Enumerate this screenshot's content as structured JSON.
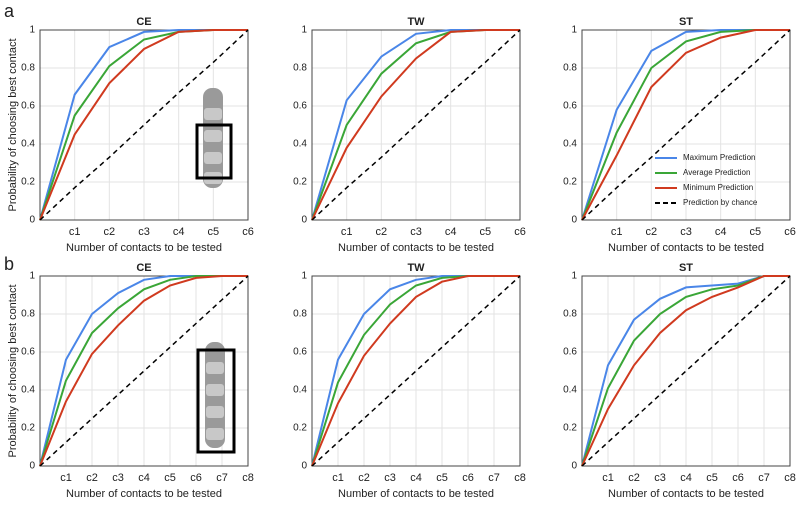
{
  "panel_labels": [
    "a",
    "b"
  ],
  "chart_data": [
    {
      "type": "line",
      "title": "CE",
      "xlabel": "Number of contacts to be tested",
      "ylabel": "Probability of choosing best contact",
      "x": [
        0,
        1,
        2,
        3,
        4,
        5,
        6
      ],
      "xlim": [
        0,
        6
      ],
      "xticks": [
        {
          "value": 1,
          "label": "c1"
        },
        {
          "value": 2,
          "label": "c2"
        },
        {
          "value": 3,
          "label": "c3"
        },
        {
          "value": 4,
          "label": "c4"
        },
        {
          "value": 5,
          "label": "c5"
        },
        {
          "value": 6,
          "label": "c6"
        }
      ],
      "ylim": [
        0,
        1
      ],
      "yticks": [
        0,
        0.2,
        0.4,
        0.6,
        0.8,
        1
      ],
      "grid": true,
      "series": [
        {
          "color": "#4a86e8",
          "linestyle": "solid",
          "values": [
            0,
            0.66,
            0.91,
            0.99,
            1,
            1,
            1
          ]
        },
        {
          "color": "#3aa637",
          "linestyle": "solid",
          "values": [
            0,
            0.55,
            0.81,
            0.95,
            0.99,
            1,
            1
          ]
        },
        {
          "color": "#d03a1f",
          "linestyle": "solid",
          "values": [
            0,
            0.45,
            0.72,
            0.9,
            0.99,
            1,
            1
          ]
        },
        {
          "color": "#000000",
          "linestyle": "dashed",
          "values": [
            0,
            0.17,
            0.33,
            0.5,
            0.67,
            0.83,
            1
          ]
        }
      ]
    },
    {
      "type": "line",
      "title": "TW",
      "xlabel": "Number of contacts to be tested",
      "x": [
        0,
        1,
        2,
        3,
        4,
        5,
        6
      ],
      "xlim": [
        0,
        6
      ],
      "xticks": [
        {
          "value": 1,
          "label": "c1"
        },
        {
          "value": 2,
          "label": "c2"
        },
        {
          "value": 3,
          "label": "c3"
        },
        {
          "value": 4,
          "label": "c4"
        },
        {
          "value": 5,
          "label": "c5"
        },
        {
          "value": 6,
          "label": "c6"
        }
      ],
      "ylim": [
        0,
        1
      ],
      "yticks": [
        0,
        0.2,
        0.4,
        0.6,
        0.8,
        1
      ],
      "grid": true,
      "series": [
        {
          "color": "#4a86e8",
          "linestyle": "solid",
          "values": [
            0,
            0.63,
            0.86,
            0.98,
            1,
            1,
            1
          ]
        },
        {
          "color": "#3aa637",
          "linestyle": "solid",
          "values": [
            0,
            0.5,
            0.77,
            0.93,
            0.99,
            1,
            1
          ]
        },
        {
          "color": "#d03a1f",
          "linestyle": "solid",
          "values": [
            0,
            0.38,
            0.65,
            0.85,
            0.99,
            1,
            1
          ]
        },
        {
          "color": "#000000",
          "linestyle": "dashed",
          "values": [
            0,
            0.17,
            0.33,
            0.5,
            0.67,
            0.83,
            1
          ]
        }
      ]
    },
    {
      "type": "line",
      "title": "ST",
      "xlabel": "Number of contacts to be tested",
      "x": [
        0,
        1,
        2,
        3,
        4,
        5,
        6
      ],
      "xlim": [
        0,
        6
      ],
      "xticks": [
        {
          "value": 1,
          "label": "c1"
        },
        {
          "value": 2,
          "label": "c2"
        },
        {
          "value": 3,
          "label": "c3"
        },
        {
          "value": 4,
          "label": "c4"
        },
        {
          "value": 5,
          "label": "c5"
        },
        {
          "value": 6,
          "label": "c6"
        }
      ],
      "ylim": [
        0,
        1
      ],
      "yticks": [
        0,
        0.2,
        0.4,
        0.6,
        0.8,
        1
      ],
      "grid": true,
      "legend": "lower right",
      "series": [
        {
          "name": "Maximum Prediction",
          "color": "#4a86e8",
          "linestyle": "solid",
          "values": [
            0,
            0.58,
            0.89,
            0.99,
            1,
            1,
            1
          ]
        },
        {
          "name": "Average Prediction",
          "color": "#3aa637",
          "linestyle": "solid",
          "values": [
            0,
            0.46,
            0.8,
            0.94,
            0.99,
            1,
            1
          ]
        },
        {
          "name": "Minimum Prediction",
          "color": "#d03a1f",
          "linestyle": "solid",
          "values": [
            0,
            0.34,
            0.7,
            0.88,
            0.96,
            1,
            1
          ]
        },
        {
          "name": "Prediction by chance",
          "color": "#000000",
          "linestyle": "dashed",
          "values": [
            0,
            0.17,
            0.33,
            0.5,
            0.67,
            0.83,
            1
          ]
        }
      ]
    },
    {
      "type": "line",
      "title": "CE",
      "xlabel": "Number of contacts to be tested",
      "ylabel": "Probability of choosing best contact",
      "x": [
        0,
        1,
        2,
        3,
        4,
        5,
        6,
        7,
        8
      ],
      "xlim": [
        0,
        8
      ],
      "xticks": [
        {
          "value": 1,
          "label": "c1"
        },
        {
          "value": 2,
          "label": "c2"
        },
        {
          "value": 3,
          "label": "c3"
        },
        {
          "value": 4,
          "label": "c4"
        },
        {
          "value": 5,
          "label": "c5"
        },
        {
          "value": 6,
          "label": "c6"
        },
        {
          "value": 7,
          "label": "c7"
        },
        {
          "value": 8,
          "label": "c8"
        }
      ],
      "ylim": [
        0,
        1
      ],
      "yticks": [
        0,
        0.2,
        0.4,
        0.6,
        0.8,
        1
      ],
      "grid": true,
      "series": [
        {
          "color": "#4a86e8",
          "linestyle": "solid",
          "values": [
            0,
            0.56,
            0.8,
            0.91,
            0.98,
            1,
            1,
            1,
            1
          ]
        },
        {
          "color": "#3aa637",
          "linestyle": "solid",
          "values": [
            0,
            0.45,
            0.7,
            0.83,
            0.93,
            0.98,
            1,
            1,
            1
          ]
        },
        {
          "color": "#d03a1f",
          "linestyle": "solid",
          "values": [
            0,
            0.34,
            0.59,
            0.74,
            0.87,
            0.95,
            0.99,
            1,
            1
          ]
        },
        {
          "color": "#000000",
          "linestyle": "dashed",
          "values": [
            0,
            0.125,
            0.25,
            0.375,
            0.5,
            0.625,
            0.75,
            0.875,
            1
          ]
        }
      ]
    },
    {
      "type": "line",
      "title": "TW",
      "xlabel": "Number of contacts to be tested",
      "x": [
        0,
        1,
        2,
        3,
        4,
        5,
        6,
        7,
        8
      ],
      "xlim": [
        0,
        8
      ],
      "xticks": [
        {
          "value": 1,
          "label": "c1"
        },
        {
          "value": 2,
          "label": "c2"
        },
        {
          "value": 3,
          "label": "c3"
        },
        {
          "value": 4,
          "label": "c4"
        },
        {
          "value": 5,
          "label": "c5"
        },
        {
          "value": 6,
          "label": "c6"
        },
        {
          "value": 7,
          "label": "c7"
        },
        {
          "value": 8,
          "label": "c8"
        }
      ],
      "ylim": [
        0,
        1
      ],
      "yticks": [
        0,
        0.2,
        0.4,
        0.6,
        0.8,
        1
      ],
      "grid": true,
      "series": [
        {
          "color": "#4a86e8",
          "linestyle": "solid",
          "values": [
            0,
            0.56,
            0.8,
            0.93,
            0.98,
            1,
            1,
            1,
            1
          ]
        },
        {
          "color": "#3aa637",
          "linestyle": "solid",
          "values": [
            0,
            0.44,
            0.69,
            0.85,
            0.95,
            0.99,
            1,
            1,
            1
          ]
        },
        {
          "color": "#d03a1f",
          "linestyle": "solid",
          "values": [
            0,
            0.33,
            0.58,
            0.75,
            0.89,
            0.97,
            1,
            1,
            1
          ]
        },
        {
          "color": "#000000",
          "linestyle": "dashed",
          "values": [
            0,
            0.125,
            0.25,
            0.375,
            0.5,
            0.625,
            0.75,
            0.875,
            1
          ]
        }
      ]
    },
    {
      "type": "line",
      "title": "ST",
      "xlabel": "Number of contacts to be tested",
      "x": [
        0,
        1,
        2,
        3,
        4,
        5,
        6,
        7,
        8
      ],
      "xlim": [
        0,
        8
      ],
      "xticks": [
        {
          "value": 1,
          "label": "c1"
        },
        {
          "value": 2,
          "label": "c2"
        },
        {
          "value": 3,
          "label": "c3"
        },
        {
          "value": 4,
          "label": "c4"
        },
        {
          "value": 5,
          "label": "c5"
        },
        {
          "value": 6,
          "label": "c6"
        },
        {
          "value": 7,
          "label": "c7"
        },
        {
          "value": 8,
          "label": "c8"
        }
      ],
      "ylim": [
        0,
        1
      ],
      "yticks": [
        0,
        0.2,
        0.4,
        0.6,
        0.8,
        1
      ],
      "grid": true,
      "series": [
        {
          "color": "#4a86e8",
          "linestyle": "solid",
          "values": [
            0,
            0.53,
            0.77,
            0.88,
            0.94,
            0.95,
            0.96,
            1,
            1
          ]
        },
        {
          "color": "#3aa637",
          "linestyle": "solid",
          "values": [
            0,
            0.41,
            0.66,
            0.8,
            0.89,
            0.93,
            0.95,
            1,
            1
          ]
        },
        {
          "color": "#d03a1f",
          "linestyle": "solid",
          "values": [
            0,
            0.3,
            0.53,
            0.7,
            0.82,
            0.89,
            0.94,
            1,
            1
          ]
        },
        {
          "color": "#000000",
          "linestyle": "dashed",
          "values": [
            0,
            0.125,
            0.25,
            0.375,
            0.5,
            0.625,
            0.75,
            0.875,
            1
          ]
        }
      ]
    }
  ]
}
